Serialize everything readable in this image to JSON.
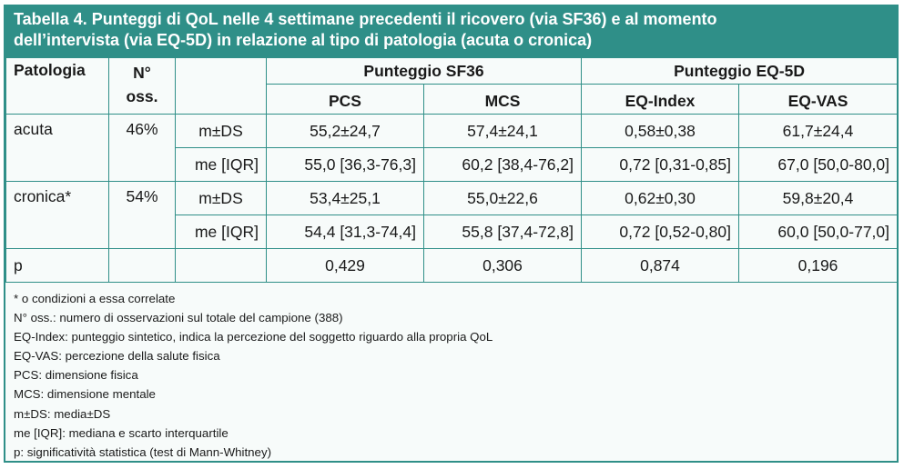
{
  "title": {
    "line1": "Tabella 4. Punteggi di QoL nelle 4 settimane precedenti il ricovero (via SF36) e al momento",
    "line2": "dell’intervista (via EQ-5D) in relazione al tipo di patologia (acuta o cronica)"
  },
  "header": {
    "patologia": "Patologia",
    "n_oss_line1": "N°",
    "n_oss_line2": "oss.",
    "sf36": "Punteggio SF36",
    "eq5d": "Punteggio EQ-5D",
    "pcs": "PCS",
    "mcs": "MCS",
    "eq_index": "EQ-Index",
    "eq_vas": "EQ-VAS"
  },
  "rows": {
    "acuta": {
      "label": "acuta",
      "pct": "46%",
      "mds": {
        "stat": "m±DS",
        "pcs": "55,2±24,7",
        "mcs": "57,4±24,1",
        "eq_index": "0,58±0,38",
        "eq_vas": "61,7±24,4"
      },
      "iqr": {
        "stat": "me [IQR]",
        "pcs": "55,0 [36,3-76,3]",
        "mcs": "60,2 [38,4-76,2]",
        "eq_index": "0,72 [0,31-0,85]",
        "eq_vas": "67,0 [50,0-80,0]"
      }
    },
    "cronica": {
      "label": "cronica*",
      "pct": "54%",
      "mds": {
        "stat": "m±DS",
        "pcs": "53,4±25,1",
        "mcs": "55,0±22,6",
        "eq_index": "0,62±0,30",
        "eq_vas": "59,8±20,4"
      },
      "iqr": {
        "stat": "me [IQR]",
        "pcs": "54,4 [31,3-74,4]",
        "mcs": "55,8 [37,4-72,8]",
        "eq_index": "0,72 [0,52-0,80]",
        "eq_vas": "60,0 [50,0-77,0]"
      }
    },
    "p": {
      "label": "p",
      "pcs": "0,429",
      "mcs": "0,306",
      "eq_index": "0,874",
      "eq_vas": "0,196"
    }
  },
  "notes": [
    "* o condizioni a essa correlate",
    "N° oss.: numero di osservazioni sul totale del campione (388)",
    "EQ-Index: punteggio sintetico, indica la percezione del soggetto riguardo alla propria QoL",
    "EQ-VAS: percezione della salute fisica",
    "PCS: dimensione fisica",
    "MCS: dimensione mentale",
    "m±DS: media±DS",
    "me [IQR]: mediana e scarto interquartile",
    "p: significatività statistica (test di Mann-Whitney)"
  ],
  "colors": {
    "accent": "#2f8f88",
    "background": "#f7fbfa",
    "title_text": "#ffffff"
  }
}
